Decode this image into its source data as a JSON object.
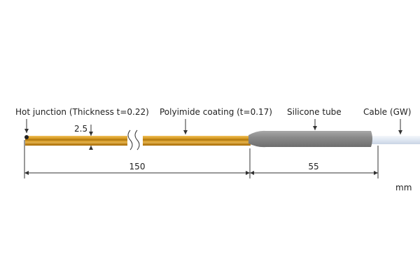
{
  "labels": {
    "hot_junction": "Hot junction (Thickness t=0.22)",
    "polyimide": "Polyimide coating (t=0.17)",
    "silicone": "Silicone tube",
    "cable": "Cable (GW)"
  },
  "dimensions": {
    "thickness": "2.5",
    "probe_length": "150",
    "tube_length": "55",
    "unit": "mm"
  }
}
